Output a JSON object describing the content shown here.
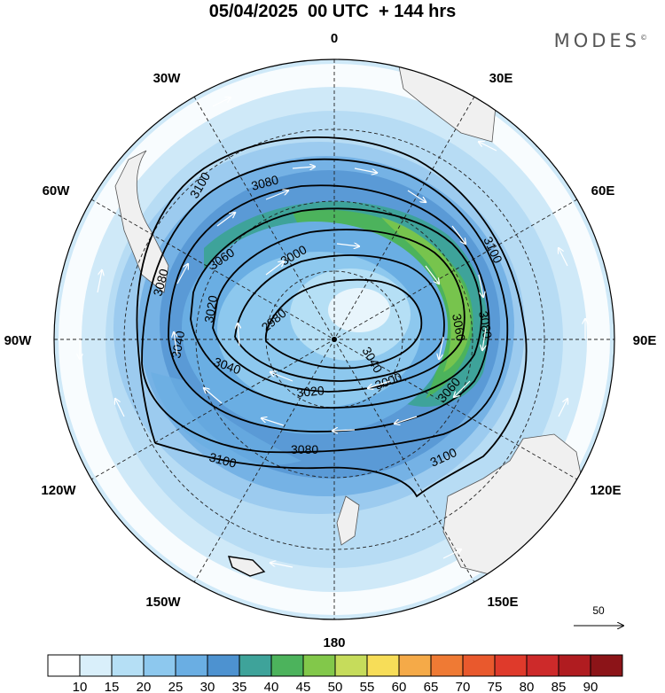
{
  "header": {
    "title": "05/04/2025  00 UTC  + 144 hrs",
    "logo": "MODES"
  },
  "map": {
    "projection": "south-polar-stereographic",
    "longitude_labels": {
      "top": "0",
      "top_right": "30E",
      "upper_right": "60E",
      "right": "90E",
      "lower_right": "120E",
      "bottom_right": "150E",
      "bottom": "180",
      "bottom_left": "150W",
      "lower_left": "120W",
      "left": "90W",
      "upper_left": "60W",
      "top_left": "30W"
    },
    "contour_labels": [
      "3100",
      "3080",
      "3060",
      "3000",
      "3020",
      "2980",
      "3040",
      "3080",
      "3040",
      "3060",
      "3080",
      "3100",
      "3020",
      "3000",
      "3060",
      "3040",
      "3080",
      "3100",
      "3100"
    ],
    "reference_vector": {
      "value": "50"
    }
  },
  "colorbar": {
    "ticks": [
      "10",
      "15",
      "20",
      "25",
      "30",
      "35",
      "40",
      "45",
      "50",
      "55",
      "60",
      "65",
      "70",
      "75",
      "80",
      "85",
      "90"
    ],
    "colors": [
      "#ffffff",
      "#d9effa",
      "#b5dff5",
      "#8dc8ee",
      "#6aaee3",
      "#4d92d0",
      "#3ea39a",
      "#4cb35c",
      "#82c84a",
      "#c6dc5b",
      "#f7dd58",
      "#f5aa48",
      "#ef7a34",
      "#e9592d",
      "#df3a2b",
      "#cd2a2a",
      "#b01c20",
      "#8c1418"
    ]
  }
}
